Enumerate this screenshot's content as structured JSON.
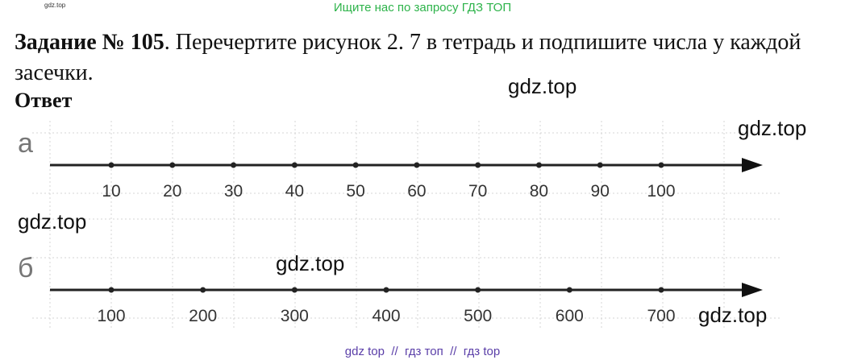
{
  "header": {
    "banner": "Ищите нас по запросу ГДЗ ТОП",
    "small_mark": "gdz.top"
  },
  "task": {
    "heading": "Задание № 105",
    "text": ". Перечертите рисунок 2. 7 в тетрадь и подпишите числа у каждой засечки.",
    "answer_label": "Ответ"
  },
  "number_lines": [
    {
      "label": "а",
      "ticks": [
        10,
        20,
        30,
        40,
        50,
        60,
        70,
        80,
        90,
        100
      ]
    },
    {
      "label": "б",
      "ticks": [
        100,
        200,
        300,
        400,
        500,
        600,
        700
      ]
    }
  ],
  "watermarks": [
    "gdz.top",
    "gdz.top",
    "gdz.top",
    "gdz.top",
    "gdz.top"
  ],
  "footer": "gdz top  //  гдз топ  //  гдз top"
}
